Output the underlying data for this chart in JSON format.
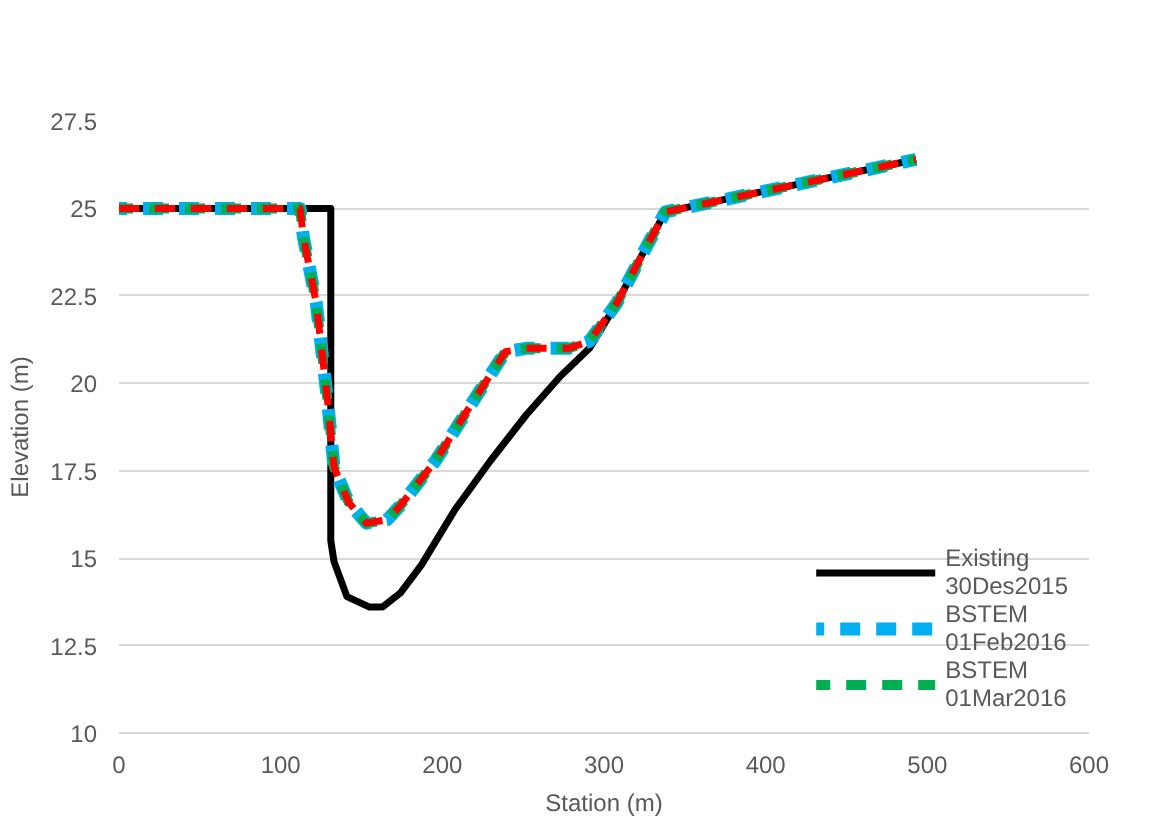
{
  "chart_data": {
    "type": "line",
    "xlabel": "Station (m)",
    "ylabel": "Elevation (m)",
    "xlim": [
      0,
      600
    ],
    "xticks": [
      0,
      100,
      200,
      300,
      400,
      500,
      600
    ],
    "ylim": [
      10,
      27.5
    ],
    "yticks": [
      10,
      12.5,
      15,
      17.5,
      20,
      22.5,
      25,
      27.5
    ],
    "grid": "y",
    "legend": "bottom right",
    "marker": "none",
    "series": [
      {
        "name": "Existing 30Des2015",
        "color": "#000000",
        "line_style": "solid",
        "x": [
          0,
          131,
          131,
          133,
          141,
          155,
          163,
          174,
          187,
          208,
          230,
          252,
          273,
          291,
          308,
          325,
          338,
          493
        ],
        "values": [
          25,
          25,
          15.5,
          14.9,
          13.9,
          13.6,
          13.6,
          14.0,
          14.8,
          16.4,
          17.8,
          19.1,
          20.2,
          21.0,
          22.3,
          23.8,
          24.9,
          26.4
        ]
      },
      {
        "name": "BSTEM 01Feb2016",
        "color": "#00b0f0",
        "line_style": "dashed",
        "x": [
          0,
          112,
          114,
          122,
          129,
          133,
          142,
          153,
          166,
          174,
          196,
          222,
          239,
          252,
          278,
          291,
          308,
          325,
          338,
          493
        ],
        "values": [
          25,
          25,
          24.2,
          22.3,
          19.5,
          17.6,
          16.6,
          16.0,
          16.1,
          16.5,
          17.8,
          19.7,
          20.9,
          21.0,
          21.0,
          21.2,
          22.3,
          23.8,
          24.9,
          26.4
        ]
      },
      {
        "name": "BSTEM 01Mar2016",
        "color": "#00b050",
        "line_style": "dashed",
        "x": [
          0,
          112,
          114,
          122,
          129,
          133,
          142,
          153,
          166,
          174,
          196,
          222,
          239,
          252,
          278,
          291,
          308,
          325,
          338,
          493
        ],
        "values": [
          25,
          25,
          24.2,
          22.3,
          19.5,
          17.6,
          16.6,
          16.0,
          16.1,
          16.5,
          17.8,
          19.7,
          20.9,
          21.0,
          21.0,
          21.2,
          22.3,
          23.8,
          24.9,
          26.4
        ]
      },
      {
        "color": "#ff0000",
        "line_style": "dashed",
        "x": [
          0,
          112,
          114,
          122,
          129,
          133,
          142,
          153,
          166,
          174,
          196,
          222,
          239,
          252,
          278,
          291,
          308,
          325,
          338,
          493
        ],
        "values": [
          25,
          25,
          24.2,
          22.3,
          19.5,
          17.6,
          16.6,
          16.0,
          16.1,
          16.5,
          17.8,
          19.7,
          20.9,
          21.0,
          21.0,
          21.2,
          22.3,
          23.8,
          24.9,
          26.4
        ]
      }
    ]
  }
}
